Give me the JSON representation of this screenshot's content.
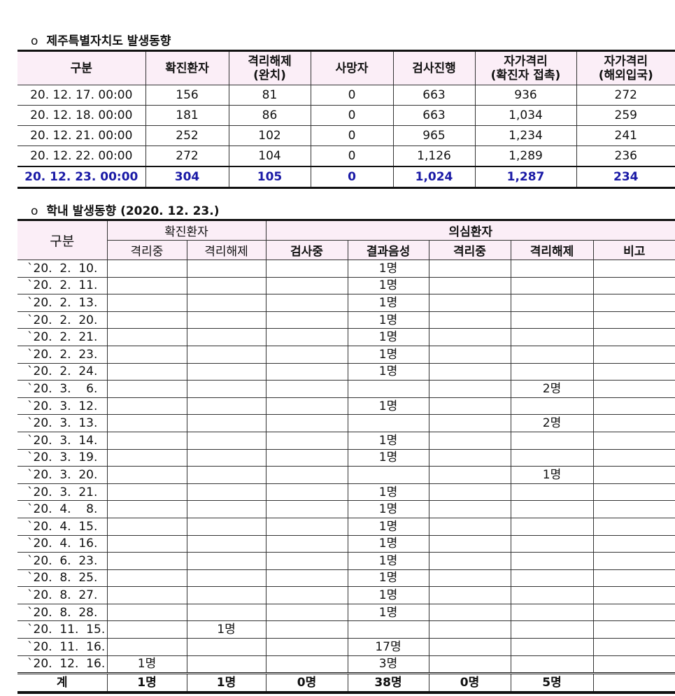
{
  "section1": {
    "bullet": "o",
    "title": "제주특별자치도 발생동향",
    "headers": [
      "구분",
      "확진환자",
      "격리해제\n(완치)",
      "사망자",
      "검사진행",
      "자가격리\n(확진자 접촉)",
      "자가격리\n(해외입국)"
    ],
    "rows": [
      [
        "20. 12. 17. 00:00",
        "156",
        "81",
        "0",
        "663",
        "936",
        "272"
      ],
      [
        "20. 12. 18. 00:00",
        "181",
        "86",
        "0",
        "663",
        "1,034",
        "259"
      ],
      [
        "20. 12. 21. 00:00",
        "252",
        "102",
        "0",
        "965",
        "1,234",
        "241"
      ],
      [
        "20. 12. 22. 00:00",
        "272",
        "104",
        "0",
        "1,126",
        "1,289",
        "236"
      ],
      [
        "20. 12. 23. 00:00",
        "304",
        "105",
        "0",
        "1,024",
        "1,287",
        "234"
      ]
    ],
    "highlight_color": "#1a1aa6"
  },
  "section2": {
    "bullet": "o",
    "title": "학내 발생동향 (2020. 12. 23.)",
    "header_group": {
      "label": "구분",
      "confirmed": "확진환자",
      "suspected": "의심환자"
    },
    "subheaders": [
      "격리중",
      "격리해제",
      "검사중",
      "결과음성",
      "격리중",
      "격리해제",
      "비고"
    ],
    "rows": [
      [
        "`20.  2.  10.",
        "",
        "",
        "",
        "1명",
        "",
        "",
        ""
      ],
      [
        "`20.  2.  11.",
        "",
        "",
        "",
        "1명",
        "",
        "",
        ""
      ],
      [
        "`20.  2.  13.",
        "",
        "",
        "",
        "1명",
        "",
        "",
        ""
      ],
      [
        "`20.  2.  20.",
        "",
        "",
        "",
        "1명",
        "",
        "",
        ""
      ],
      [
        "`20.  2.  21.",
        "",
        "",
        "",
        "1명",
        "",
        "",
        ""
      ],
      [
        "`20.  2.  23.",
        "",
        "",
        "",
        "1명",
        "",
        "",
        ""
      ],
      [
        "`20.  2.  24.",
        "",
        "",
        "",
        "1명",
        "",
        "",
        ""
      ],
      [
        "`20.  3.    6.",
        "",
        "",
        "",
        "",
        "",
        "2명",
        ""
      ],
      [
        "`20.  3.  12.",
        "",
        "",
        "",
        "1명",
        "",
        "",
        ""
      ],
      [
        "`20.  3.  13.",
        "",
        "",
        "",
        "",
        "",
        "2명",
        ""
      ],
      [
        "`20.  3.  14.",
        "",
        "",
        "",
        "1명",
        "",
        "",
        ""
      ],
      [
        "`20.  3.  19.",
        "",
        "",
        "",
        "1명",
        "",
        "",
        ""
      ],
      [
        "`20.  3.  20.",
        "",
        "",
        "",
        "",
        "",
        "1명",
        ""
      ],
      [
        "`20.  3.  21.",
        "",
        "",
        "",
        "1명",
        "",
        "",
        ""
      ],
      [
        "`20.  4.    8.",
        "",
        "",
        "",
        "1명",
        "",
        "",
        ""
      ],
      [
        "`20.  4.  15.",
        "",
        "",
        "",
        "1명",
        "",
        "",
        ""
      ],
      [
        "`20.  4.  16.",
        "",
        "",
        "",
        "1명",
        "",
        "",
        ""
      ],
      [
        "`20.  6.  23.",
        "",
        "",
        "",
        "1명",
        "",
        "",
        ""
      ],
      [
        "`20.  8.  25.",
        "",
        "",
        "",
        "1명",
        "",
        "",
        ""
      ],
      [
        "`20.  8.  27.",
        "",
        "",
        "",
        "1명",
        "",
        "",
        ""
      ],
      [
        "`20.  8.  28.",
        "",
        "",
        "",
        "1명",
        "",
        "",
        ""
      ],
      [
        "`20.  11.  15.",
        "",
        "1명",
        "",
        "",
        "",
        "",
        ""
      ],
      [
        "`20.  11.  16.",
        "",
        "",
        "",
        "17명",
        "",
        "",
        ""
      ],
      [
        "`20.  12.  16.",
        "1명",
        "",
        "",
        "3명",
        "",
        "",
        ""
      ]
    ],
    "total": [
      "계",
      "1명",
      "1명",
      "0명",
      "38명",
      "0명",
      "5명",
      ""
    ]
  }
}
